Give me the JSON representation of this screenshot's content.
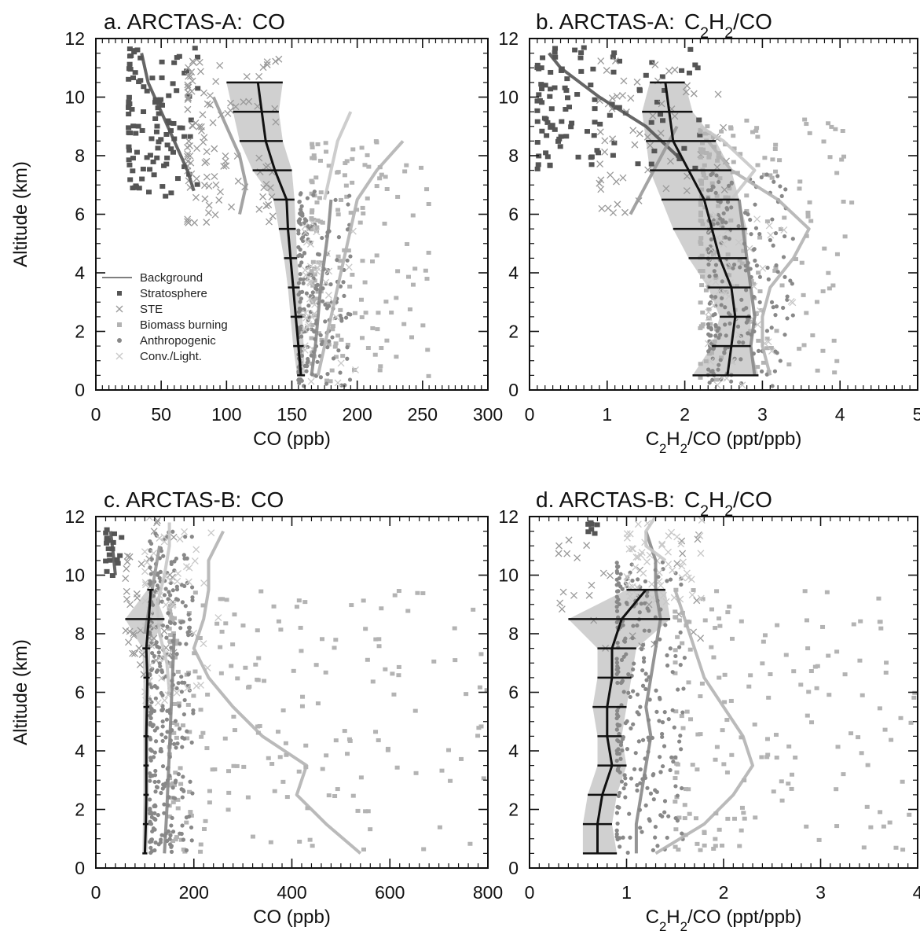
{
  "legend": {
    "items": [
      {
        "label": "Background",
        "symbol": "line",
        "color": "#555555"
      },
      {
        "label": "Stratosphere",
        "symbol": "square",
        "color": "#555555"
      },
      {
        "label": "STE",
        "symbol": "cross",
        "color": "#999999"
      },
      {
        "label": "Biomass burning",
        "symbol": "square",
        "color": "#b3b3b3"
      },
      {
        "label": "Anthropogenic",
        "symbol": "circle",
        "color": "#888888"
      },
      {
        "label": "Conv./Light.",
        "symbol": "cross",
        "color": "#c8c8c8"
      }
    ]
  },
  "colors": {
    "background_line": "#111111",
    "background_band": "#c8c8c8",
    "stratosphere": "#555555",
    "ste": "#999999",
    "biomass": "#b3b3b3",
    "anthropogenic": "#888888",
    "convective": "#c8c8c8"
  },
  "chart_data": [
    {
      "id": "a",
      "type": "scatter",
      "title_prefix": "a. ARCTAS-A:",
      "title_species": "CO",
      "xlabel": "CO (ppb)",
      "ylabel": "Altitude (km)",
      "xlim": [
        0,
        300
      ],
      "ylim": [
        0,
        12
      ],
      "xticks": [
        0,
        50,
        100,
        150,
        200,
        250,
        300
      ],
      "yticks": [
        0,
        2,
        4,
        6,
        8,
        10,
        12
      ],
      "show_legend": true,
      "legend_position": "lower-left",
      "background_profile": {
        "altitude": [
          0.5,
          1.5,
          2.5,
          3.5,
          4.5,
          5.5,
          6.5,
          7.5,
          8.5,
          9.5,
          10.5
        ],
        "median": [
          157,
          155,
          153,
          151,
          149,
          147,
          146,
          137,
          130,
          127,
          124
        ],
        "low": [
          154,
          151,
          149,
          147,
          144,
          140,
          136,
          120,
          110,
          105,
          100
        ],
        "high": [
          160,
          159,
          158,
          156,
          154,
          153,
          152,
          150,
          143,
          140,
          143
        ]
      },
      "source_profiles": [
        {
          "category": "stratosphere",
          "altitude": [
            6.8,
            7.5,
            8.5,
            9.5,
            10.5,
            11.5
          ],
          "x": [
            75,
            70,
            60,
            50,
            40,
            35
          ]
        },
        {
          "category": "ste",
          "altitude": [
            6.0,
            7.0,
            8.0,
            9.0,
            10.0
          ],
          "x": [
            110,
            115,
            110,
            100,
            90
          ]
        },
        {
          "category": "biomass",
          "altitude": [
            0.5,
            1.5,
            2.5,
            3.5,
            4.5,
            5.5,
            6.5,
            7.5,
            8.5
          ],
          "x": [
            170,
            175,
            180,
            185,
            190,
            195,
            200,
            215,
            235
          ]
        },
        {
          "category": "anthropogenic",
          "altitude": [
            0.5,
            1.5,
            2.5,
            3.5,
            4.5,
            5.5,
            6.5
          ],
          "x": [
            165,
            168,
            170,
            172,
            175,
            178,
            180
          ]
        },
        {
          "category": "convective",
          "altitude": [
            6.5,
            7.5,
            8.5,
            9.5
          ],
          "x": [
            175,
            180,
            185,
            195
          ]
        }
      ],
      "scatter_groups": [
        {
          "category": "stratosphere",
          "count": 110,
          "x_range": [
            25,
            78
          ],
          "y_range": [
            6.6,
            11.7
          ]
        },
        {
          "category": "ste",
          "count": 110,
          "x_range": [
            70,
            140
          ],
          "y_range": [
            5.7,
            11.3
          ]
        },
        {
          "category": "biomass",
          "count": 160,
          "x_range": [
            165,
            255
          ],
          "y_range": [
            0.3,
            8.5
          ]
        },
        {
          "category": "anthropogenic",
          "count": 200,
          "x_range": [
            155,
            195
          ],
          "y_range": [
            0.1,
            6.8
          ]
        },
        {
          "category": "convective",
          "count": 40,
          "x_range": [
            160,
            200
          ],
          "y_range": [
            0.1,
            6.0
          ]
        }
      ]
    },
    {
      "id": "b",
      "type": "scatter",
      "title_prefix": "b. ARCTAS-A:",
      "title_species": "C2H2/CO",
      "xlabel": "C2H2/CO (ppt/ppb)",
      "ylabel": "",
      "xlim": [
        0,
        5
      ],
      "ylim": [
        0,
        12
      ],
      "xticks": [
        0,
        1,
        2,
        3,
        4,
        5
      ],
      "yticks": [
        0,
        2,
        4,
        6,
        8,
        10,
        12
      ],
      "show_legend": false,
      "background_profile": {
        "altitude": [
          0.5,
          1.5,
          2.5,
          3.5,
          4.5,
          5.5,
          6.5,
          7.5,
          8.5,
          9.5,
          10.5
        ],
        "median": [
          2.55,
          2.6,
          2.65,
          2.6,
          2.45,
          2.35,
          2.25,
          2.05,
          1.85,
          1.8,
          1.75
        ],
        "low": [
          2.1,
          2.35,
          2.45,
          2.3,
          2.05,
          1.85,
          1.7,
          1.55,
          1.5,
          1.45,
          1.55
        ],
        "high": [
          2.95,
          2.85,
          2.85,
          2.85,
          2.8,
          2.8,
          2.7,
          2.6,
          2.4,
          2.1,
          2.0
        ]
      },
      "source_profiles": [
        {
          "category": "stratosphere",
          "altitude": [
            8.0,
            9.0,
            10.0,
            11.0,
            11.5
          ],
          "x": [
            1.9,
            1.5,
            0.9,
            0.4,
            0.25
          ]
        },
        {
          "category": "ste",
          "altitude": [
            6.0,
            7.0,
            8.0,
            9.0
          ],
          "x": [
            1.3,
            1.5,
            1.7,
            1.9
          ]
        },
        {
          "category": "biomass",
          "altitude": [
            0.5,
            1.5,
            2.5,
            3.5,
            4.5,
            5.5,
            6.5,
            7.5,
            8.5
          ],
          "x": [
            3.1,
            3.0,
            3.0,
            3.1,
            3.4,
            3.6,
            3.2,
            2.6,
            2.3
          ]
        },
        {
          "category": "anthropogenic",
          "altitude": [
            0.5,
            1.5,
            2.5,
            3.5,
            4.5,
            5.5,
            6.5
          ],
          "x": [
            2.9,
            2.85,
            2.9,
            2.85,
            2.8,
            2.75,
            2.7
          ]
        },
        {
          "category": "convective",
          "altitude": [
            6.5,
            7.5,
            8.5,
            9.0
          ],
          "x": [
            2.6,
            2.9,
            2.5,
            2.2
          ]
        }
      ],
      "scatter_groups": [
        {
          "category": "stratosphere",
          "count": 110,
          "x_range": [
            0.1,
            2.2
          ],
          "y_range": [
            7.5,
            11.7
          ]
        },
        {
          "category": "ste",
          "count": 60,
          "x_range": [
            0.9,
            2.6
          ],
          "y_range": [
            6.0,
            11.3
          ]
        },
        {
          "category": "biomass",
          "count": 200,
          "x_range": [
            2.2,
            4.2
          ],
          "y_range": [
            0.2,
            9.3
          ]
        },
        {
          "category": "anthropogenic",
          "count": 220,
          "x_range": [
            2.3,
            3.4
          ],
          "y_range": [
            0.1,
            7.5
          ]
        },
        {
          "category": "convective",
          "count": 50,
          "x_range": [
            2.3,
            3.5
          ],
          "y_range": [
            0.1,
            6.0
          ]
        }
      ]
    },
    {
      "id": "c",
      "type": "scatter",
      "title_prefix": "c. ARCTAS-B:",
      "title_species": "CO",
      "xlabel": "CO (ppb)",
      "ylabel": "Altitude (km)",
      "xlim": [
        0,
        800
      ],
      "ylim": [
        0,
        12
      ],
      "xticks": [
        0,
        200,
        400,
        600,
        800
      ],
      "yticks": [
        0,
        2,
        4,
        6,
        8,
        10,
        12
      ],
      "show_legend": false,
      "background_profile": {
        "altitude": [
          0.5,
          1.5,
          2.5,
          3.5,
          4.5,
          5.5,
          6.5,
          7.5,
          8.5,
          9.5
        ],
        "median": [
          100,
          102,
          103,
          103,
          103,
          104,
          105,
          103,
          108,
          112
        ],
        "low": [
          95,
          96,
          97,
          97,
          97,
          97,
          97,
          95,
          60,
          105
        ],
        "high": [
          105,
          107,
          108,
          108,
          108,
          109,
          110,
          111,
          140,
          118
        ]
      },
      "source_profiles": [
        {
          "category": "stratosphere",
          "altitude": [
            10.0,
            10.8,
            11.5
          ],
          "x": [
            40,
            35,
            30
          ]
        },
        {
          "category": "ste",
          "altitude": [
            8.0,
            9.0,
            10.0,
            11.0
          ],
          "x": [
            100,
            110,
            120,
            130
          ]
        },
        {
          "category": "biomass",
          "altitude": [
            0.5,
            1.5,
            2.5,
            3.5,
            4.5,
            5.5,
            6.5,
            7.5,
            8.5,
            9.5,
            10.5,
            11.5
          ],
          "x": [
            540,
            470,
            410,
            430,
            340,
            280,
            230,
            200,
            220,
            230,
            230,
            260
          ]
        },
        {
          "category": "anthropogenic",
          "altitude": [
            0.5,
            2.0,
            4.0,
            6.0,
            8.0
          ],
          "x": [
            140,
            145,
            150,
            155,
            160
          ]
        },
        {
          "category": "convective",
          "altitude": [
            6.0,
            7.0,
            8.0,
            9.0,
            10.0,
            11.0,
            11.8
          ],
          "x": [
            150,
            145,
            130,
            125,
            140,
            150,
            150
          ]
        }
      ],
      "scatter_groups": [
        {
          "category": "stratosphere",
          "count": 20,
          "x_range": [
            20,
            55
          ],
          "y_range": [
            9.9,
            11.7
          ]
        },
        {
          "category": "ste",
          "count": 40,
          "x_range": [
            60,
            160
          ],
          "y_range": [
            6.0,
            12.0
          ]
        },
        {
          "category": "biomass",
          "count": 220,
          "x_range": [
            150,
            800
          ],
          "y_range": [
            0.5,
            9.5
          ]
        },
        {
          "category": "anthropogenic",
          "count": 320,
          "x_range": [
            110,
            200
          ],
          "y_range": [
            0.5,
            11.5
          ]
        },
        {
          "category": "convective",
          "count": 60,
          "x_range": [
            100,
            250
          ],
          "y_range": [
            5.5,
            12.0
          ]
        }
      ]
    },
    {
      "id": "d",
      "type": "scatter",
      "title_prefix": "d. ARCTAS-B:",
      "title_species": "C2H2/CO",
      "xlabel": "C2H2/CO (ppt/ppb)",
      "ylabel": "",
      "xlim": [
        0,
        4
      ],
      "ylim": [
        0,
        12
      ],
      "xticks": [
        0,
        1,
        2,
        3,
        4
      ],
      "yticks": [
        0,
        2,
        4,
        6,
        8,
        10,
        12
      ],
      "show_legend": false,
      "background_profile": {
        "altitude": [
          0.5,
          1.5,
          2.5,
          3.5,
          4.5,
          5.5,
          6.5,
          7.5,
          8.5,
          9.5
        ],
        "median": [
          0.7,
          0.7,
          0.75,
          0.85,
          0.8,
          0.8,
          0.85,
          0.85,
          0.95,
          1.2
        ],
        "low": [
          0.55,
          0.55,
          0.6,
          0.7,
          0.7,
          0.65,
          0.7,
          0.7,
          0.4,
          1.0
        ],
        "high": [
          0.9,
          0.85,
          0.9,
          1.0,
          0.95,
          1.0,
          1.05,
          1.1,
          1.45,
          1.4
        ]
      },
      "source_profiles": [
        {
          "category": "biomass",
          "altitude": [
            0.5,
            1.5,
            2.5,
            3.5,
            4.5,
            5.5,
            6.5,
            7.5,
            8.5,
            9.5
          ],
          "x": [
            1.3,
            1.8,
            2.1,
            2.3,
            2.2,
            2.0,
            1.8,
            1.7,
            1.6,
            1.5
          ]
        },
        {
          "category": "anthropogenic",
          "altitude": [
            0.5,
            1.5,
            2.5,
            3.5,
            4.5,
            5.5,
            6.5,
            7.5,
            8.5,
            9.5,
            10.5,
            11.5
          ],
          "x": [
            1.1,
            1.1,
            1.15,
            1.2,
            1.25,
            1.2,
            1.25,
            1.3,
            1.35,
            1.3,
            1.3,
            1.2
          ]
        },
        {
          "category": "convective",
          "altitude": [
            10.5,
            11.0,
            11.5,
            12.0
          ],
          "x": [
            1.4,
            1.2,
            1.2,
            1.3
          ]
        }
      ],
      "scatter_groups": [
        {
          "category": "stratosphere",
          "count": 8,
          "x_range": [
            0.6,
            0.7
          ],
          "y_range": [
            11.4,
            11.8
          ]
        },
        {
          "category": "ste",
          "count": 30,
          "x_range": [
            0.3,
            1.8
          ],
          "y_range": [
            7.5,
            11.5
          ]
        },
        {
          "category": "biomass",
          "count": 170,
          "x_range": [
            1.5,
            4.0
          ],
          "y_range": [
            0.5,
            9.5
          ]
        },
        {
          "category": "anthropogenic",
          "count": 260,
          "x_range": [
            0.9,
            1.6
          ],
          "y_range": [
            0.5,
            10.5
          ]
        },
        {
          "category": "convective",
          "count": 60,
          "x_range": [
            1.0,
            1.8
          ],
          "y_range": [
            9.0,
            12.0
          ]
        }
      ]
    }
  ]
}
